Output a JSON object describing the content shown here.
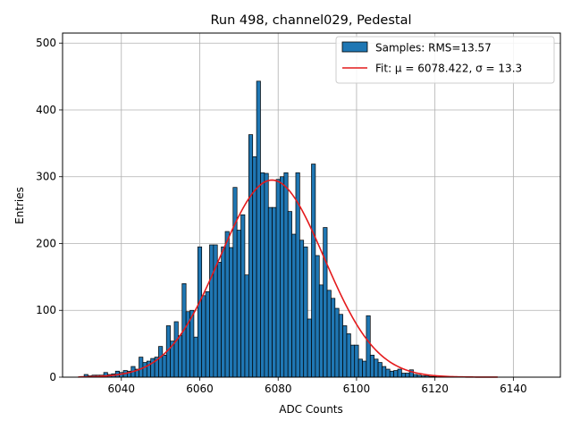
{
  "chart_data": {
    "type": "bar",
    "title": "Run 498, channel029, Pedestal",
    "xlabel": "ADC Counts",
    "ylabel": "Entries",
    "xlim": [
      6025,
      6152
    ],
    "ylim": [
      0,
      515
    ],
    "xticks": [
      6040,
      6060,
      6080,
      6100,
      6120,
      6140
    ],
    "yticks": [
      0,
      100,
      200,
      300,
      400,
      500
    ],
    "grid": true,
    "legend_position": "top-right",
    "colors": {
      "bars": "#1f77b4",
      "bar_edge": "#000000",
      "fit": "#e41a1c",
      "grid": "#b0b0b0"
    },
    "bin_width": 1,
    "series": [
      {
        "name": "Samples: RMS=13.57",
        "type": "histogram",
        "x": [
          6030,
          6031,
          6032,
          6033,
          6034,
          6035,
          6036,
          6037,
          6038,
          6039,
          6040,
          6041,
          6042,
          6043,
          6044,
          6045,
          6046,
          6047,
          6048,
          6049,
          6050,
          6051,
          6052,
          6053,
          6054,
          6055,
          6056,
          6057,
          6058,
          6059,
          6060,
          6061,
          6062,
          6063,
          6064,
          6065,
          6066,
          6067,
          6068,
          6069,
          6070,
          6071,
          6072,
          6073,
          6074,
          6075,
          6076,
          6077,
          6078,
          6079,
          6080,
          6081,
          6082,
          6083,
          6084,
          6085,
          6086,
          6087,
          6088,
          6089,
          6090,
          6091,
          6092,
          6093,
          6094,
          6095,
          6096,
          6097,
          6098,
          6099,
          6100,
          6101,
          6102,
          6103,
          6104,
          6105,
          6106,
          6107,
          6108,
          6109,
          6110,
          6111,
          6112,
          6113,
          6114,
          6115,
          6116,
          6117,
          6118,
          6119,
          6120,
          6121,
          6122
        ],
        "values": [
          1,
          4,
          2,
          3,
          3,
          3,
          7,
          4,
          5,
          9,
          7,
          10,
          9,
          16,
          12,
          30,
          22,
          24,
          28,
          30,
          46,
          33,
          77,
          54,
          83,
          62,
          140,
          98,
          100,
          60,
          195,
          122,
          128,
          198,
          198,
          172,
          195,
          218,
          194,
          284,
          220,
          243,
          153,
          363,
          330,
          443,
          306,
          305,
          254,
          254,
          296,
          300,
          306,
          248,
          214,
          306,
          205,
          195,
          87,
          319,
          182,
          138,
          224,
          130,
          118,
          103,
          94,
          77,
          65,
          48,
          48,
          27,
          24,
          92,
          33,
          27,
          22,
          16,
          12,
          9,
          10,
          12,
          6,
          6,
          11,
          4,
          3,
          2,
          2,
          1,
          1,
          0,
          1
        ]
      },
      {
        "name": "Fit: μ = 6078.422, σ = 13.3",
        "type": "gaussian-fit",
        "mu": 6078.422,
        "sigma": 13.3,
        "amplitude": 295,
        "x_range": [
          6029,
          6136
        ]
      }
    ]
  }
}
